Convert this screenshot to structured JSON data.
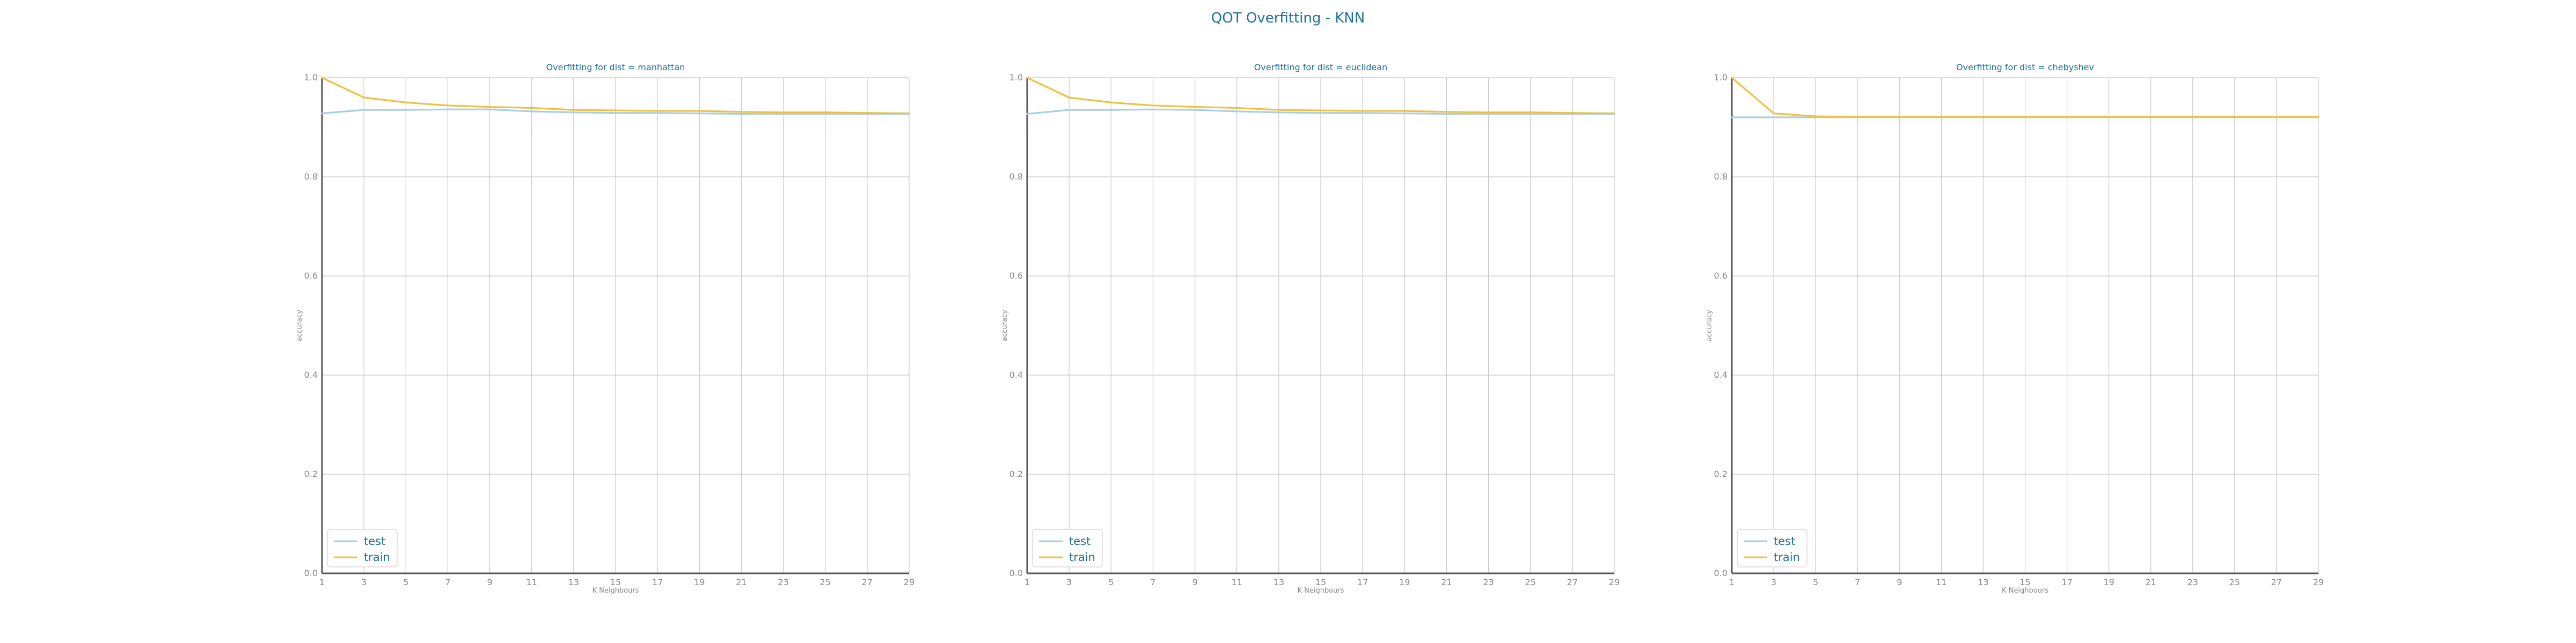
{
  "suptitle": "QOT Overfitting - KNN",
  "colors": {
    "test": "#a8cfe0",
    "train": "#f0c040",
    "grid": "#c8c8c8",
    "axis": "#555555",
    "title": "#1f6f9f"
  },
  "chart_data": [
    {
      "type": "line",
      "title": "Overfitting for dist = manhattan",
      "xlabel": "K Neighbours",
      "ylabel": "accuracy",
      "x": [
        1,
        3,
        5,
        7,
        9,
        11,
        13,
        15,
        17,
        19,
        21,
        23,
        25,
        27,
        29
      ],
      "xticks": [
        "1",
        "3",
        "5",
        "7",
        "9",
        "11",
        "13",
        "15",
        "17",
        "19",
        "21",
        "23",
        "25",
        "27",
        "29"
      ],
      "yticks": [
        "0.0",
        "0.2",
        "0.4",
        "0.6",
        "0.8",
        "1.0"
      ],
      "ylim": [
        0,
        1
      ],
      "grid": true,
      "legend": "lower-left",
      "series": [
        {
          "name": "test",
          "values": [
            0.928,
            0.935,
            0.935,
            0.936,
            0.936,
            0.932,
            0.93,
            0.929,
            0.929,
            0.928,
            0.927,
            0.927,
            0.927,
            0.927,
            0.927
          ]
        },
        {
          "name": "train",
          "values": [
            1.0,
            0.96,
            0.95,
            0.944,
            0.941,
            0.939,
            0.935,
            0.934,
            0.933,
            0.933,
            0.931,
            0.93,
            0.93,
            0.929,
            0.928
          ]
        }
      ]
    },
    {
      "type": "line",
      "title": "Overfitting for dist = euclidean",
      "xlabel": "K Neighbours",
      "ylabel": "accuracy",
      "x": [
        1,
        3,
        5,
        7,
        9,
        11,
        13,
        15,
        17,
        19,
        21,
        23,
        25,
        27,
        29
      ],
      "xticks": [
        "1",
        "3",
        "5",
        "7",
        "9",
        "11",
        "13",
        "15",
        "17",
        "19",
        "21",
        "23",
        "25",
        "27",
        "29"
      ],
      "yticks": [
        "0.0",
        "0.2",
        "0.4",
        "0.6",
        "0.8",
        "1.0"
      ],
      "ylim": [
        0,
        1
      ],
      "grid": true,
      "legend": "lower-left",
      "series": [
        {
          "name": "test",
          "values": [
            0.927,
            0.935,
            0.935,
            0.936,
            0.935,
            0.932,
            0.93,
            0.929,
            0.929,
            0.928,
            0.927,
            0.927,
            0.927,
            0.927,
            0.927
          ]
        },
        {
          "name": "train",
          "values": [
            1.0,
            0.96,
            0.95,
            0.944,
            0.941,
            0.939,
            0.935,
            0.934,
            0.933,
            0.933,
            0.931,
            0.93,
            0.93,
            0.929,
            0.928
          ]
        }
      ]
    },
    {
      "type": "line",
      "title": "Overfitting for dist = chebyshev",
      "xlabel": "K Neighbours",
      "ylabel": "accuracy",
      "x": [
        1,
        3,
        5,
        7,
        9,
        11,
        13,
        15,
        17,
        19,
        21,
        23,
        25,
        27,
        29
      ],
      "xticks": [
        "1",
        "3",
        "5",
        "7",
        "9",
        "11",
        "13",
        "15",
        "17",
        "19",
        "21",
        "23",
        "25",
        "27",
        "29"
      ],
      "yticks": [
        "0.0",
        "0.2",
        "0.4",
        "0.6",
        "0.8",
        "1.0"
      ],
      "ylim": [
        0,
        1
      ],
      "grid": true,
      "legend": "lower-left",
      "series": [
        {
          "name": "test",
          "values": [
            0.92,
            0.92,
            0.92,
            0.92,
            0.92,
            0.92,
            0.92,
            0.92,
            0.92,
            0.92,
            0.92,
            0.92,
            0.92,
            0.92,
            0.92
          ]
        },
        {
          "name": "train",
          "values": [
            1.0,
            0.928,
            0.922,
            0.921,
            0.921,
            0.921,
            0.921,
            0.921,
            0.921,
            0.921,
            0.921,
            0.921,
            0.921,
            0.921,
            0.921
          ]
        }
      ]
    }
  ]
}
